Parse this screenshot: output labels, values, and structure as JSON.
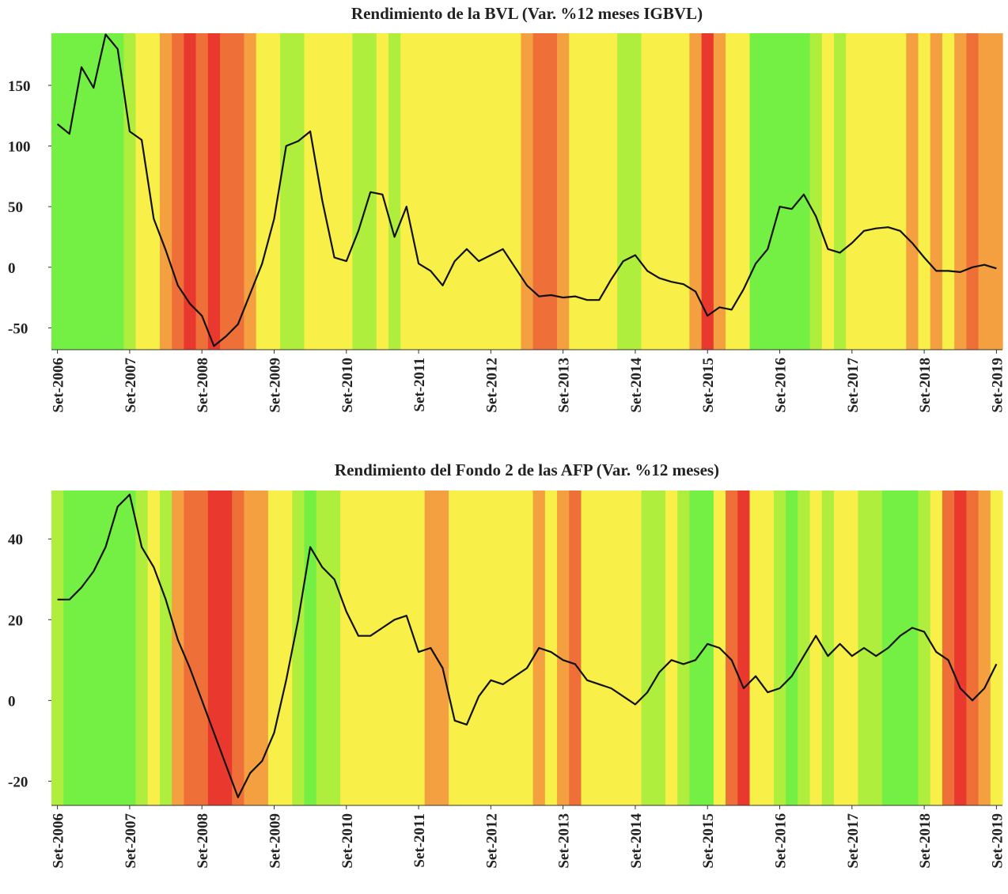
{
  "chart_data": [
    {
      "type": "line",
      "title": "Rendimiento de la BVL (Var. %12 meses IGBVL)",
      "categories": [
        "Set-2006",
        null,
        null,
        null,
        null,
        null,
        "Set-2007",
        null,
        null,
        null,
        null,
        null,
        "Set-2008",
        null,
        null,
        null,
        null,
        null,
        "Set-2009",
        null,
        null,
        null,
        null,
        null,
        "Set-2010",
        null,
        null,
        null,
        null,
        null,
        "Set-2011",
        null,
        null,
        null,
        null,
        null,
        "Set-2012",
        null,
        null,
        null,
        null,
        null,
        "Set-2013",
        null,
        null,
        null,
        null,
        null,
        "Set-2014",
        null,
        null,
        null,
        null,
        null,
        "Set-2015",
        null,
        null,
        null,
        null,
        null,
        "Set-2016",
        null,
        null,
        null,
        null,
        null,
        "Set-2017",
        null,
        null,
        null,
        null,
        null,
        "Set-2018",
        null,
        null,
        null,
        null,
        null,
        "Set-2019"
      ],
      "values": [
        118,
        110,
        165,
        148,
        192,
        180,
        112,
        105,
        40,
        14,
        -15,
        -30,
        -40,
        -65,
        -57,
        -47,
        -22,
        3,
        40,
        100,
        104,
        112,
        55,
        8,
        5,
        30,
        62,
        60,
        25,
        50,
        3,
        -3,
        -15,
        5,
        15,
        5,
        10,
        15,
        0,
        -15,
        -24,
        -23,
        -25,
        -24,
        -27,
        -27,
        -10,
        5,
        10,
        -3,
        -9,
        -12,
        -14,
        -20,
        -40,
        -33,
        -35,
        -18,
        3,
        15,
        50,
        48,
        60,
        42,
        15,
        12,
        20,
        30,
        32,
        33,
        30,
        20,
        8,
        -3,
        -3,
        -4,
        0,
        2,
        -1
      ],
      "color": "#111111",
      "background_colors": [
        "#74ef44",
        "#74ef44",
        "#74ef44",
        "#74ef44",
        "#74ef44",
        "#74ef44",
        "#b0ee3e",
        "#f8f048",
        "#f8f048",
        "#f4a040",
        "#ee7038",
        "#e9392e",
        "#ee7038",
        "#e9392e",
        "#ee7038",
        "#ee7038",
        "#f4a040",
        "#f8f048",
        "#f8f048",
        "#b0ee3e",
        "#b0ee3e",
        "#f8f048",
        "#f8f048",
        "#f8f048",
        "#f8f048",
        "#b0ee3e",
        "#b0ee3e",
        "#f8f048",
        "#b0ee3e",
        "#f8f048",
        "#f8f048",
        "#f8f048",
        "#f8f048",
        "#f8f048",
        "#f8f048",
        "#f8f048",
        "#f8f048",
        "#f8f048",
        "#f8f048",
        "#f4a040",
        "#ee7038",
        "#ee7038",
        "#f4a040",
        "#f8f048",
        "#f8f048",
        "#f8f048",
        "#f8f048",
        "#b0ee3e",
        "#b0ee3e",
        "#f8f048",
        "#f8f048",
        "#f8f048",
        "#f8f048",
        "#f4a040",
        "#e9392e",
        "#f4a040",
        "#f8f048",
        "#f8f048",
        "#74ef44",
        "#74ef44",
        "#74ef44",
        "#74ef44",
        "#74ef44",
        "#b0ee3e",
        "#f8f048",
        "#b0ee3e",
        "#f8f048",
        "#f8f048",
        "#f8f048",
        "#f8f048",
        "#f8f048",
        "#f4a040",
        "#f8f048",
        "#f4a040",
        "#f8f048",
        "#f4a040",
        "#ee7038",
        "#f4a040",
        "#f4a040"
      ],
      "ylim": [
        -68,
        193
      ],
      "yticks": [
        150,
        100,
        50,
        0,
        -50
      ]
    },
    {
      "type": "line",
      "title": "Rendimiento del Fondo 2 de las AFP (Var. %12 meses)",
      "categories": [
        "Set-2006",
        null,
        null,
        null,
        null,
        null,
        "Set-2007",
        null,
        null,
        null,
        null,
        null,
        "Set-2008",
        null,
        null,
        null,
        null,
        null,
        "Set-2009",
        null,
        null,
        null,
        null,
        null,
        "Set-2010",
        null,
        null,
        null,
        null,
        null,
        "Set-2011",
        null,
        null,
        null,
        null,
        null,
        "Set-2012",
        null,
        null,
        null,
        null,
        null,
        "Set-2013",
        null,
        null,
        null,
        null,
        null,
        "Set-2014",
        null,
        null,
        null,
        null,
        null,
        "Set-2015",
        null,
        null,
        null,
        null,
        null,
        "Set-2016",
        null,
        null,
        null,
        null,
        null,
        "Set-2017",
        null,
        null,
        null,
        null,
        null,
        "Set-2018",
        null,
        null,
        null,
        null,
        null,
        "Set-2019"
      ],
      "values": [
        25,
        25,
        28,
        32,
        38,
        48,
        51,
        38,
        33,
        25,
        15,
        8,
        0,
        -8,
        -16,
        -24,
        -18,
        -15,
        -8,
        5,
        20,
        38,
        33,
        30,
        22,
        16,
        16,
        18,
        20,
        21,
        12,
        13,
        8,
        -5,
        -6,
        1,
        5,
        4,
        6,
        8,
        13,
        12,
        10,
        9,
        5,
        4,
        3,
        1,
        -1,
        2,
        7,
        10,
        9,
        10,
        14,
        13,
        10,
        3,
        6,
        2,
        3,
        6,
        11,
        16,
        11,
        14,
        11,
        13,
        11,
        13,
        16,
        18,
        17,
        12,
        10,
        3,
        0,
        3,
        9
      ],
      "color": "#111111",
      "background_colors": [
        "#b0ee3e",
        "#74ef44",
        "#74ef44",
        "#74ef44",
        "#74ef44",
        "#74ef44",
        "#74ef44",
        "#b0ee3e",
        "#f8f048",
        "#b0ee3e",
        "#f4a040",
        "#ee7038",
        "#ee7038",
        "#e9392e",
        "#e9392e",
        "#ee7038",
        "#f4a040",
        "#f4a040",
        "#f8f048",
        "#f8f048",
        "#b0ee3e",
        "#74ef44",
        "#b0ee3e",
        "#b0ee3e",
        "#f8f048",
        "#f8f048",
        "#f8f048",
        "#f8f048",
        "#f8f048",
        "#f8f048",
        "#f8f048",
        "#f4a040",
        "#f4a040",
        "#f8f048",
        "#f8f048",
        "#f8f048",
        "#f8f048",
        "#f8f048",
        "#f8f048",
        "#f8f048",
        "#f4a040",
        "#f8f048",
        "#f4a040",
        "#ee7038",
        "#f8f048",
        "#f8f048",
        "#f8f048",
        "#f8f048",
        "#f8f048",
        "#b0ee3e",
        "#b0ee3e",
        "#f8f048",
        "#b0ee3e",
        "#74ef44",
        "#74ef44",
        "#f8f048",
        "#ee7038",
        "#e9392e",
        "#f8f048",
        "#f8f048",
        "#b0ee3e",
        "#74ef44",
        "#b0ee3e",
        "#f8f048",
        "#b0ee3e",
        "#f8f048",
        "#f8f048",
        "#b0ee3e",
        "#b0ee3e",
        "#74ef44",
        "#74ef44",
        "#74ef44",
        "#b0ee3e",
        "#f8f048",
        "#ee7038",
        "#e9392e",
        "#ee7038",
        "#f4a040",
        "#f8f048"
      ],
      "ylim": [
        -26,
        52
      ],
      "yticks": [
        40,
        20,
        0,
        -20
      ]
    }
  ]
}
